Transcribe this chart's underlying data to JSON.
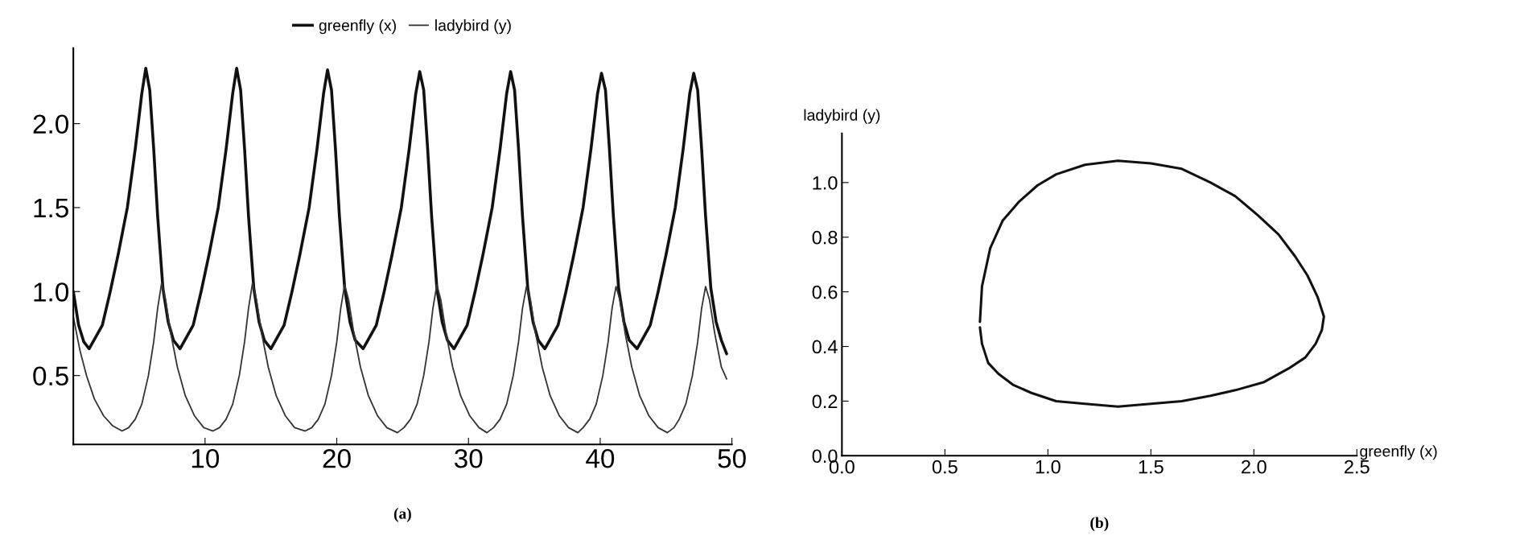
{
  "chart_data": [
    {
      "type": "line",
      "legend": "top",
      "xlim": [
        0,
        50
      ],
      "ylim": [
        0.09,
        2.45
      ],
      "xticks": [
        10,
        20,
        30,
        40,
        50
      ],
      "yticks": [
        0.5,
        {
          "value": 1,
          "label": "1.0"
        },
        1.5,
        {
          "value": 2,
          "label": "2.0"
        }
      ],
      "annotations": [
        "(a)"
      ],
      "series": [
        {
          "name": "greenfly (x)",
          "color": "#111111",
          "x": [
            0,
            0.4,
            0.8,
            1.2,
            2.2,
            2.8,
            3.4,
            4.1,
            4.7,
            5.2,
            5.5,
            5.8,
            6.1,
            6.4,
            6.8,
            7.2,
            7.6,
            8.1,
            9.1,
            9.7,
            10.3,
            11.0,
            11.6,
            12.1,
            12.4,
            12.7,
            13.0,
            13.3,
            13.7,
            14.1,
            14.5,
            15.0,
            16.0,
            16.6,
            17.2,
            17.9,
            18.5,
            19.0,
            19.3,
            19.6,
            19.9,
            20.2,
            20.6,
            21.0,
            21.4,
            22.0,
            23.0,
            23.6,
            24.2,
            24.9,
            25.5,
            26.0,
            26.3,
            26.6,
            26.9,
            27.2,
            27.6,
            28.0,
            28.4,
            28.9,
            29.9,
            30.5,
            31.1,
            31.8,
            32.4,
            32.9,
            33.2,
            33.5,
            33.8,
            34.1,
            34.5,
            34.9,
            35.3,
            35.8,
            36.8,
            37.4,
            38.0,
            38.7,
            39.3,
            39.8,
            40.1,
            40.4,
            40.7,
            41.0,
            41.4,
            41.8,
            42.2,
            42.8,
            43.8,
            44.4,
            45.0,
            45.7,
            46.3,
            46.8,
            47.1,
            47.4,
            47.7,
            48.0,
            48.4,
            48.8,
            49.2,
            49.6
          ],
          "values": [
            1.0,
            0.8,
            0.7,
            0.66,
            0.8,
            1.0,
            1.22,
            1.5,
            1.85,
            2.18,
            2.33,
            2.2,
            1.85,
            1.45,
            1.02,
            0.82,
            0.71,
            0.66,
            0.8,
            1.0,
            1.22,
            1.5,
            1.85,
            2.18,
            2.33,
            2.2,
            1.85,
            1.45,
            1.02,
            0.82,
            0.71,
            0.66,
            0.8,
            1.0,
            1.22,
            1.5,
            1.85,
            2.18,
            2.32,
            2.2,
            1.85,
            1.45,
            1.02,
            0.82,
            0.71,
            0.66,
            0.8,
            1.0,
            1.22,
            1.5,
            1.85,
            2.18,
            2.31,
            2.2,
            1.85,
            1.45,
            1.02,
            0.82,
            0.71,
            0.66,
            0.8,
            1.0,
            1.22,
            1.5,
            1.85,
            2.18,
            2.31,
            2.2,
            1.85,
            1.45,
            1.02,
            0.82,
            0.71,
            0.66,
            0.8,
            1.0,
            1.22,
            1.5,
            1.85,
            2.18,
            2.3,
            2.2,
            1.85,
            1.45,
            1.02,
            0.82,
            0.71,
            0.66,
            0.8,
            1.0,
            1.22,
            1.5,
            1.85,
            2.18,
            2.3,
            2.2,
            1.85,
            1.45,
            1.02,
            0.82,
            0.71,
            0.63
          ]
        },
        {
          "name": "ladybird (y)",
          "color": "#333333",
          "x": [
            0,
            0.5,
            1.0,
            1.6,
            2.3,
            3.0,
            3.7,
            4.2,
            4.7,
            5.2,
            5.7,
            6.1,
            6.4,
            6.7,
            7.0,
            7.4,
            7.9,
            8.5,
            9.2,
            9.9,
            10.6,
            11.1,
            11.6,
            12.1,
            12.6,
            13.0,
            13.3,
            13.6,
            13.9,
            14.3,
            14.8,
            15.4,
            16.1,
            16.8,
            17.6,
            18.1,
            18.6,
            19.1,
            19.6,
            20.0,
            20.3,
            20.6,
            20.9,
            21.3,
            21.8,
            22.4,
            23.1,
            23.8,
            24.6,
            25.1,
            25.6,
            26.1,
            26.6,
            27.0,
            27.3,
            27.6,
            27.9,
            28.3,
            28.8,
            29.4,
            30.1,
            30.8,
            31.4,
            31.9,
            32.4,
            32.9,
            33.4,
            33.8,
            34.1,
            34.4,
            34.7,
            35.1,
            35.6,
            36.2,
            36.9,
            37.6,
            38.3,
            38.7,
            39.2,
            39.7,
            40.2,
            40.6,
            40.9,
            41.2,
            41.5,
            41.9,
            42.4,
            43.0,
            43.7,
            44.4,
            45.1,
            45.6,
            46.0,
            46.5,
            47.0,
            47.4,
            47.7,
            48.0,
            48.3,
            48.7,
            49.2,
            49.6
          ],
          "values": [
            0.85,
            0.65,
            0.5,
            0.36,
            0.26,
            0.2,
            0.17,
            0.19,
            0.24,
            0.33,
            0.5,
            0.7,
            0.9,
            1.05,
            0.95,
            0.75,
            0.55,
            0.38,
            0.26,
            0.19,
            0.17,
            0.19,
            0.24,
            0.33,
            0.5,
            0.7,
            0.9,
            1.05,
            0.95,
            0.75,
            0.55,
            0.38,
            0.26,
            0.19,
            0.17,
            0.19,
            0.24,
            0.33,
            0.5,
            0.7,
            0.9,
            1.04,
            0.95,
            0.75,
            0.55,
            0.38,
            0.26,
            0.19,
            0.16,
            0.19,
            0.24,
            0.33,
            0.5,
            0.7,
            0.9,
            1.04,
            0.95,
            0.75,
            0.55,
            0.38,
            0.26,
            0.19,
            0.16,
            0.19,
            0.24,
            0.33,
            0.5,
            0.7,
            0.9,
            1.03,
            0.95,
            0.75,
            0.55,
            0.38,
            0.26,
            0.19,
            0.16,
            0.19,
            0.24,
            0.33,
            0.5,
            0.7,
            0.9,
            1.03,
            0.95,
            0.75,
            0.55,
            0.38,
            0.26,
            0.19,
            0.16,
            0.19,
            0.24,
            0.33,
            0.5,
            0.7,
            0.9,
            1.03,
            0.95,
            0.75,
            0.55,
            0.48
          ]
        }
      ]
    },
    {
      "type": "line",
      "xlabel": "greenfly (x)",
      "ylabel": "ladybird (y)",
      "legend": false,
      "xlim": [
        0,
        2.5
      ],
      "ylim": [
        0,
        1.18
      ],
      "xticks": [
        {
          "value": 0,
          "label": "0.0"
        },
        0.5,
        {
          "value": 1,
          "label": "1.0"
        },
        1.5,
        {
          "value": 2,
          "label": "2.0"
        },
        2.5
      ],
      "yticks": [
        {
          "value": 0,
          "label": "0.0"
        },
        0.2,
        0.4,
        0.6,
        0.8,
        {
          "value": 1,
          "label": "1.0"
        }
      ],
      "annotations": [
        "(b)"
      ],
      "series": [
        {
          "color": "#111111",
          "x": [
            0.67,
            0.68,
            0.72,
            0.78,
            0.86,
            0.95,
            1.04,
            1.18,
            1.34,
            1.5,
            1.65,
            1.79,
            1.91,
            2.02,
            2.12,
            2.2,
            2.26,
            2.31,
            2.34,
            2.33,
            2.3,
            2.25,
            2.17,
            2.05,
            1.91,
            1.79,
            1.65,
            1.5,
            1.34,
            1.18,
            1.04,
            0.92,
            0.83,
            0.76,
            0.71,
            0.68,
            0.67
          ],
          "values": [
            0.49,
            0.62,
            0.76,
            0.86,
            0.93,
            0.99,
            1.03,
            1.065,
            1.08,
            1.07,
            1.05,
            1.0,
            0.95,
            0.88,
            0.81,
            0.73,
            0.66,
            0.58,
            0.51,
            0.46,
            0.41,
            0.36,
            0.32,
            0.27,
            0.24,
            0.22,
            0.2,
            0.19,
            0.18,
            0.19,
            0.2,
            0.23,
            0.26,
            0.3,
            0.34,
            0.41,
            0.47
          ]
        }
      ]
    }
  ]
}
